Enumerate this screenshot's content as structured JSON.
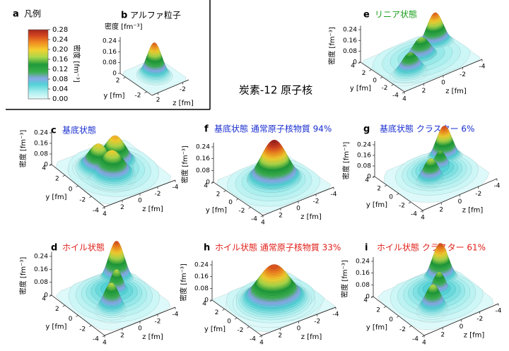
{
  "legend": {
    "label": "a",
    "title": "凡例",
    "axis_label": "密度 [fm⁻³]",
    "ticks": [
      0.28,
      0.24,
      {
        "value": 0.2,
        "label": "0.20"
      },
      0.16,
      0.12,
      0.08,
      0.04,
      {
        "value": 0,
        "label": "0.00"
      }
    ]
  },
  "main_title": "炭素-12 原子核",
  "panels": [
    {
      "label": "b",
      "title": "アルファ粒子",
      "title_color": "#000000",
      "density_label": "密度 [fm⁻³]",
      "density_ticks": [
        0.24,
        0.16,
        0.08,
        0
      ],
      "y_label": "y [fm]",
      "y_ticks": [
        -2,
        2
      ],
      "z_label": "z [fm]",
      "z_ticks": [
        -2,
        2
      ]
    },
    {
      "label": "e",
      "title": "リニア状態",
      "title_color": "#1a9e1a",
      "density_label": "密度 [fm⁻³]",
      "density_ticks": [
        0.24,
        0.16,
        0.08,
        0
      ],
      "y_label": "y [fm]",
      "y_ticks": [
        4,
        2,
        0,
        -2,
        -4
      ],
      "z_label": "z [fm]",
      "z_ticks": [
        4,
        2,
        0,
        -2,
        -4
      ]
    },
    {
      "label": "c",
      "title": "基底状態",
      "title_color": "#1a2fd0",
      "density_label": "密度 [fm⁻³]",
      "density_ticks": [
        0.24,
        0.16,
        0.08,
        0
      ],
      "y_label": "y [fm]",
      "y_ticks": [
        4,
        2,
        0,
        -2,
        -4
      ],
      "z_label": "z [fm]",
      "z_ticks": [
        4,
        2,
        0,
        -2,
        -4
      ]
    },
    {
      "label": "f",
      "title": "基底状態  通常原子核物質 94%",
      "title_color": "#1a2fd0",
      "density_label": "密度 [fm⁻³]",
      "density_ticks": [
        0.24,
        0.16,
        0.08,
        0
      ],
      "y_label": "y [fm]",
      "y_ticks": [
        4,
        2,
        0,
        -2,
        -4
      ],
      "z_label": "z [fm]",
      "z_ticks": [
        4,
        2,
        0,
        -2,
        -4
      ]
    },
    {
      "label": "g",
      "title": "基底状態   クラスター  6%",
      "title_color": "#1a2fd0",
      "density_label": "密度 [fm⁻³]",
      "density_ticks": [
        0.24,
        0.16,
        0.08,
        0
      ],
      "y_label": "y [fm]",
      "y_ticks": [
        4,
        2,
        0,
        -2,
        -4
      ],
      "z_label": "z [fm]",
      "z_ticks": [
        4,
        2,
        0,
        -2,
        -4
      ]
    },
    {
      "label": "d",
      "title": "ホイル状態",
      "title_color": "#e0201a",
      "density_label": "密度 [fm⁻³]",
      "density_ticks": [
        0.24,
        0.16,
        0.08,
        0
      ],
      "y_label": "y [fm]",
      "y_ticks": [
        4,
        2,
        0,
        -2,
        -4
      ],
      "z_label": "z [fm]",
      "z_ticks": [
        4,
        2,
        0,
        -2,
        -4
      ]
    },
    {
      "label": "h",
      "title": "ホイル状態  通常原子核物質  33%",
      "title_color": "#e0201a",
      "density_label": "密度 [fm⁻³]",
      "density_ticks": [
        0.24,
        0.16,
        0.08,
        0
      ],
      "y_label": "y [fm]",
      "y_ticks": [
        4,
        2,
        0,
        -2,
        -4
      ],
      "z_label": "z [fm]",
      "z_ticks": [
        4,
        2,
        0,
        -2,
        -4
      ]
    },
    {
      "label": "i",
      "title": "ホイル状態   クラスター  61%",
      "title_color": "#e0201a",
      "density_label": "密度 [fm⁻³]",
      "density_ticks": [
        0.24,
        0.16,
        0.08,
        0
      ],
      "y_label": "y [fm]",
      "y_ticks": [
        4,
        2,
        0,
        -2,
        -4
      ],
      "z_label": "z [fm]",
      "z_ticks": [
        4,
        2,
        0,
        -2,
        -4
      ]
    }
  ]
}
